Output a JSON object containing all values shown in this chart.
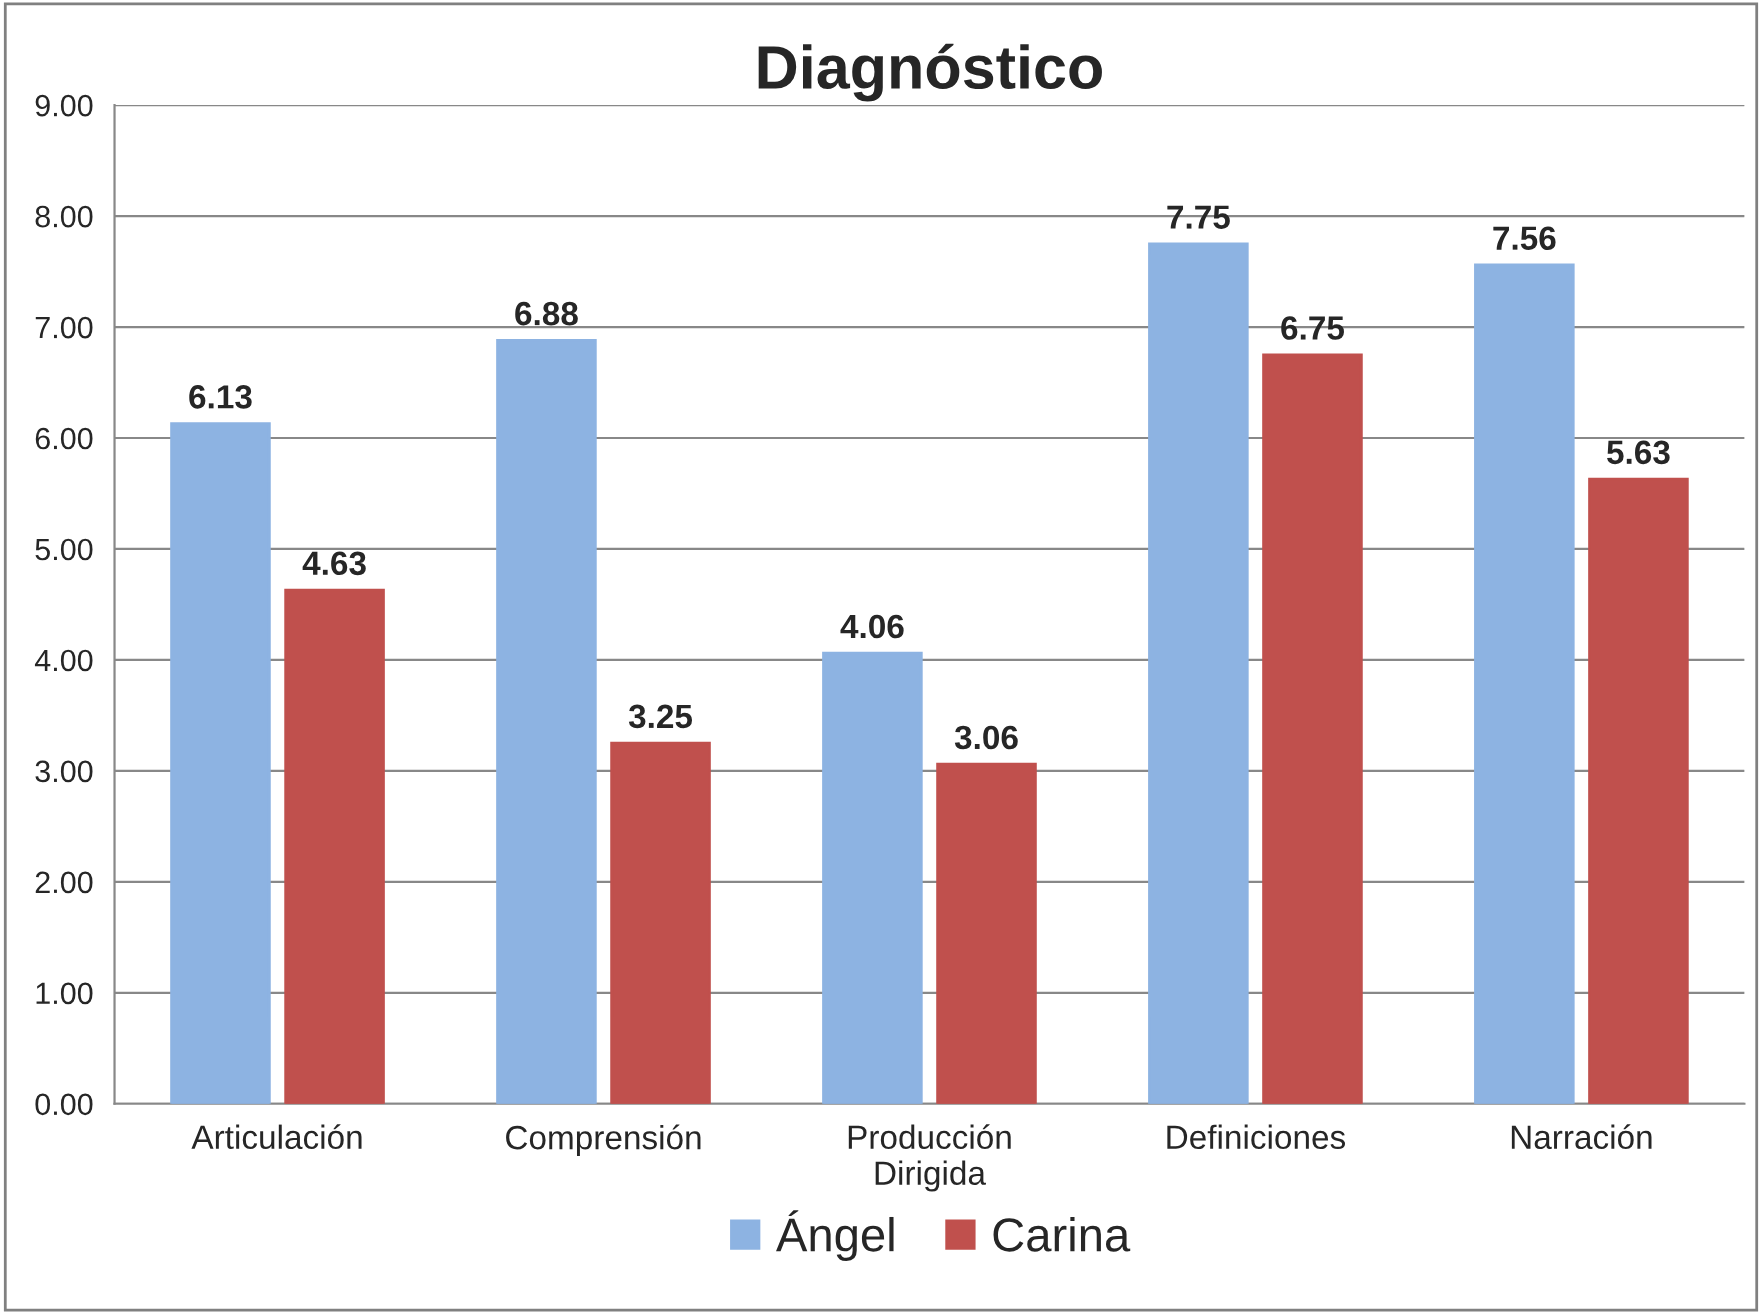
{
  "chart_data": {
    "type": "bar",
    "title": "Diagnóstico",
    "categories": [
      "Articulación",
      "Comprensión",
      "Producción\nDirigida",
      "Definiciones",
      "Narración"
    ],
    "series": [
      {
        "name": "Ángel",
        "color": "#8db3e2",
        "values": [
          6.13,
          6.88,
          4.06,
          7.75,
          7.56
        ]
      },
      {
        "name": "Carina",
        "color": "#c0504d",
        "values": [
          4.63,
          3.25,
          3.06,
          6.75,
          5.63
        ]
      }
    ],
    "ylim": [
      0,
      9
    ],
    "yticks": [
      {
        "value": 0,
        "label": "0.00"
      },
      {
        "value": 1,
        "label": "1.00"
      },
      {
        "value": 2,
        "label": "2.00"
      },
      {
        "value": 3,
        "label": "3.00"
      },
      {
        "value": 4,
        "label": "4.00"
      },
      {
        "value": 5,
        "label": "5.00"
      },
      {
        "value": 6,
        "label": "6.00"
      },
      {
        "value": 7,
        "label": "7.00"
      },
      {
        "value": 8,
        "label": "8.00"
      },
      {
        "value": 9,
        "label": "9.00"
      }
    ],
    "grid": "y",
    "legend": "bottom",
    "data_labels": true
  }
}
